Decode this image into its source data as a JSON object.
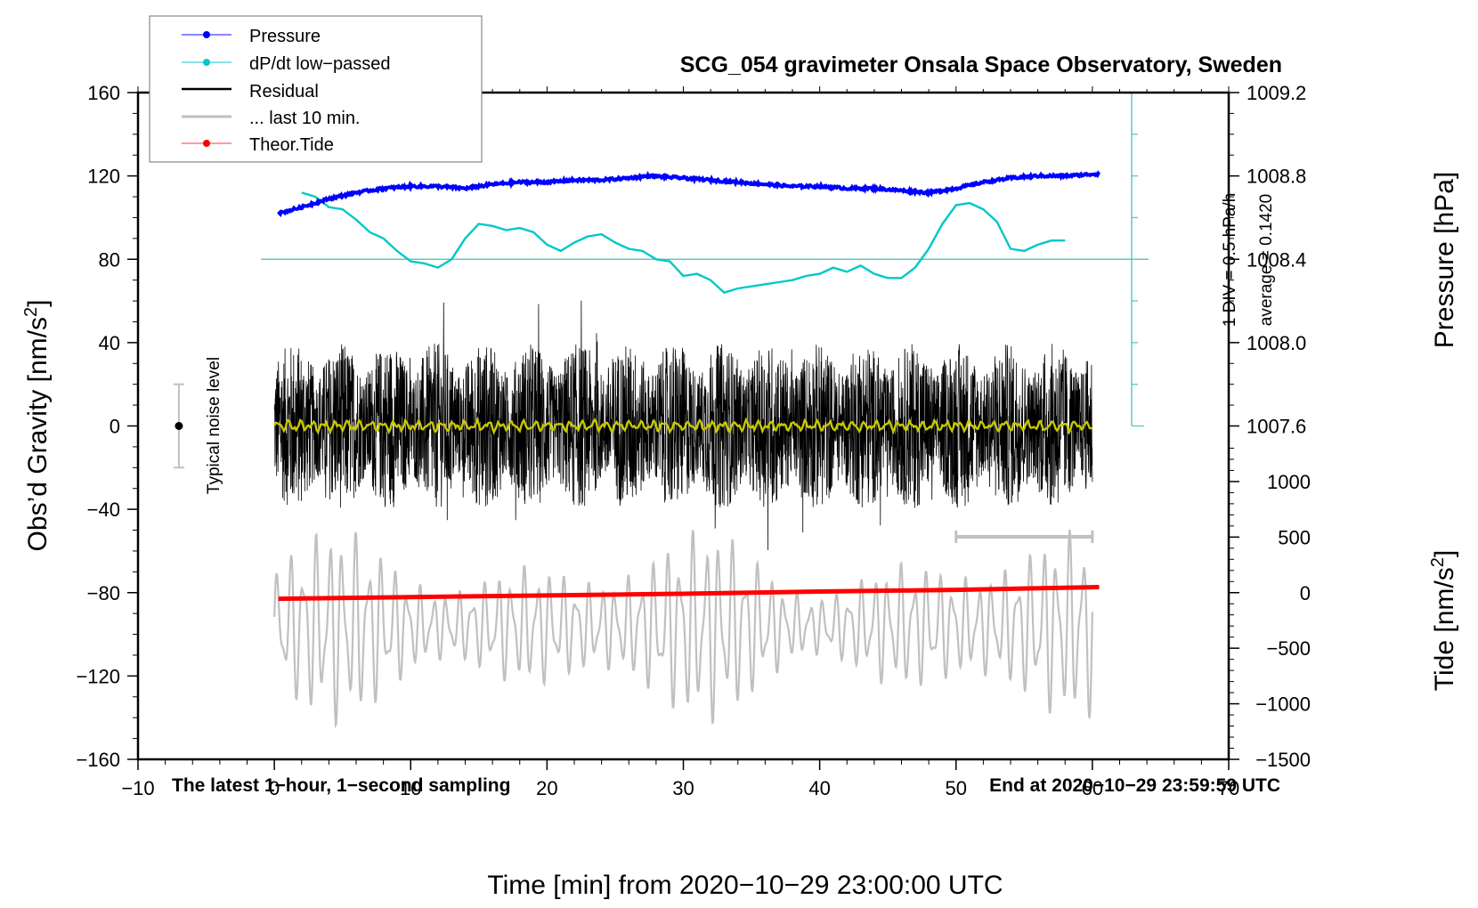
{
  "chart_data": {
    "type": "line",
    "title": "SCG_054 gravimeter Onsala Space Observatory, Sweden",
    "xlabel": "Time [min] from 2020−10−29 23:00:00 UTC",
    "ylabel_left": "Obs’d Gravity [nm/s",
    "ylabel_left_sup": "2",
    "ylabel_left_end": "]",
    "ylabel_right_top": "Pressure [hPa]",
    "ylabel_right_bottom": "Tide [nm/s",
    "ylabel_right_bottom_sup": "2",
    "ylabel_right_bottom_end": "]",
    "xlim": [
      -10,
      70
    ],
    "ylim_left": [
      -160,
      160
    ],
    "pressure_axis": {
      "value_at_gravity_80": 1008.4,
      "hpa_per_40_gravity": 0.4
    },
    "tide_axis": {
      "value_at_gravity_minus_160": -1500,
      "value_at_gravity_minus_80": 0,
      "tide_per_gravity_unit": 18.75
    },
    "x_ticks": [
      -10,
      0,
      10,
      20,
      30,
      40,
      50,
      60,
      70
    ],
    "x_tick_labels": [
      "−10",
      "0",
      "10",
      "20",
      "30",
      "40",
      "50",
      "60",
      "70"
    ],
    "y_left_ticks": [
      160,
      120,
      80,
      40,
      0,
      -40,
      -80,
      -120,
      -160
    ],
    "y_left_tick_labels": [
      "160",
      "120",
      "80",
      "40",
      "0",
      "−40",
      "−80",
      "−120",
      "−160"
    ],
    "pressure_ticks": [
      1009.2,
      1008.8,
      1008.4,
      1008.0,
      1007.6
    ],
    "pressure_tick_labels": [
      "1009.2",
      "1008.8",
      "1008.4",
      "1008.0",
      "1007.6"
    ],
    "tide_ticks": [
      1000,
      500,
      0,
      -500,
      -1000,
      -1500
    ],
    "tide_tick_labels": [
      "1000",
      "500",
      "0",
      "−500",
      "−1000",
      "−1500"
    ],
    "legend": {
      "placement": "top-left",
      "entries": [
        {
          "label": "Pressure",
          "color": "#0000ff",
          "marker": "dot"
        },
        {
          "label": "dP/dt low−passed",
          "color": "#00c8c8",
          "marker": "dot"
        },
        {
          "label": "Residual",
          "color": "#000000",
          "marker": "line"
        },
        {
          "label": "... last 10 min.",
          "color": "#c0c0c0",
          "marker": "line"
        },
        {
          "label": "Theor.Tide",
          "color": "#ff0000",
          "marker": "dot"
        }
      ]
    },
    "series": [
      {
        "name": "Pressure",
        "unit": "hPa",
        "color": "#0000ff",
        "x": [
          0.3,
          2,
          4,
          6,
          8,
          10,
          12,
          14,
          16,
          18,
          20,
          22,
          24,
          26,
          27.5,
          30,
          32,
          34,
          36,
          38,
          40,
          42,
          44,
          46,
          48,
          50,
          52,
          54,
          56,
          58,
          60.5
        ],
        "values": [
          1008.62,
          1008.65,
          1008.69,
          1008.72,
          1008.74,
          1008.75,
          1008.75,
          1008.74,
          1008.76,
          1008.77,
          1008.77,
          1008.78,
          1008.78,
          1008.79,
          1008.8,
          1008.79,
          1008.78,
          1008.77,
          1008.76,
          1008.75,
          1008.75,
          1008.74,
          1008.74,
          1008.73,
          1008.72,
          1008.74,
          1008.77,
          1008.79,
          1008.8,
          1008.8,
          1008.81
        ]
      },
      {
        "name": "dP/dt low-passed",
        "unit": "gravity-axis units (1 DIV = 0.5 hPa/h, baseline = average 0.1420)",
        "color": "#00c8c8",
        "x": [
          2,
          3,
          4,
          5,
          6,
          7,
          8,
          9,
          10,
          11,
          12,
          13,
          14,
          15,
          16,
          17,
          18,
          19,
          20,
          21,
          22,
          23,
          24,
          25,
          26,
          27,
          28,
          29,
          30,
          31,
          32,
          33,
          34,
          35,
          36,
          37,
          38,
          39,
          40,
          41,
          42,
          43,
          44,
          45,
          46,
          47,
          48,
          49,
          50,
          51,
          52,
          53,
          54,
          55,
          56,
          57,
          58
        ],
        "values": [
          112,
          110,
          105,
          104,
          99,
          93,
          90,
          84,
          79,
          78,
          76,
          80,
          90,
          97,
          96,
          94,
          95,
          93,
          87,
          84,
          88,
          91,
          92,
          88,
          85,
          84,
          80,
          79,
          72,
          73,
          70,
          64,
          66,
          67,
          68,
          69,
          70,
          72,
          73,
          76,
          74,
          77,
          73,
          71,
          71,
          76,
          85,
          97,
          106,
          107,
          104,
          98,
          85,
          84,
          87,
          89,
          89
        ]
      },
      {
        "name": "Residual",
        "unit": "nm/s2",
        "color": "#000000",
        "x_range": [
          0,
          60
        ],
        "envelope_min": -60,
        "envelope_max": 68,
        "typical_amplitude": 40
      },
      {
        "name": "Residual low-passed",
        "unit": "nm/s2",
        "color": "#c8c800",
        "x_range": [
          0,
          60
        ],
        "approx_value": 0
      },
      {
        "name": "... last 10 min.",
        "unit": "nm/s2 (tide axis)",
        "color": "#c0c0c0",
        "x_range": [
          0,
          60
        ],
        "envelope_min_tide": -1450,
        "envelope_max_tide": 600
      },
      {
        "name": "Theor.Tide",
        "unit": "nm/s2",
        "color": "#ff0000",
        "x": [
          0.3,
          10,
          20,
          30,
          40,
          50,
          60.5
        ],
        "values": [
          -55,
          -40,
          -25,
          -10,
          10,
          25,
          50
        ]
      }
    ],
    "annotations": {
      "dpdt_scale": "1 DIV = 0.5 hPa/h",
      "dpdt_average": "average = 0.1420",
      "noise_label": "Typical noise level",
      "noise_level": 20,
      "bottom_left": "The latest 1−hour, 1−second sampling",
      "bottom_right": "End at 2020−10−29 23:59:59 UTC",
      "last10_bar_range": [
        50,
        60
      ]
    },
    "grid": false
  }
}
